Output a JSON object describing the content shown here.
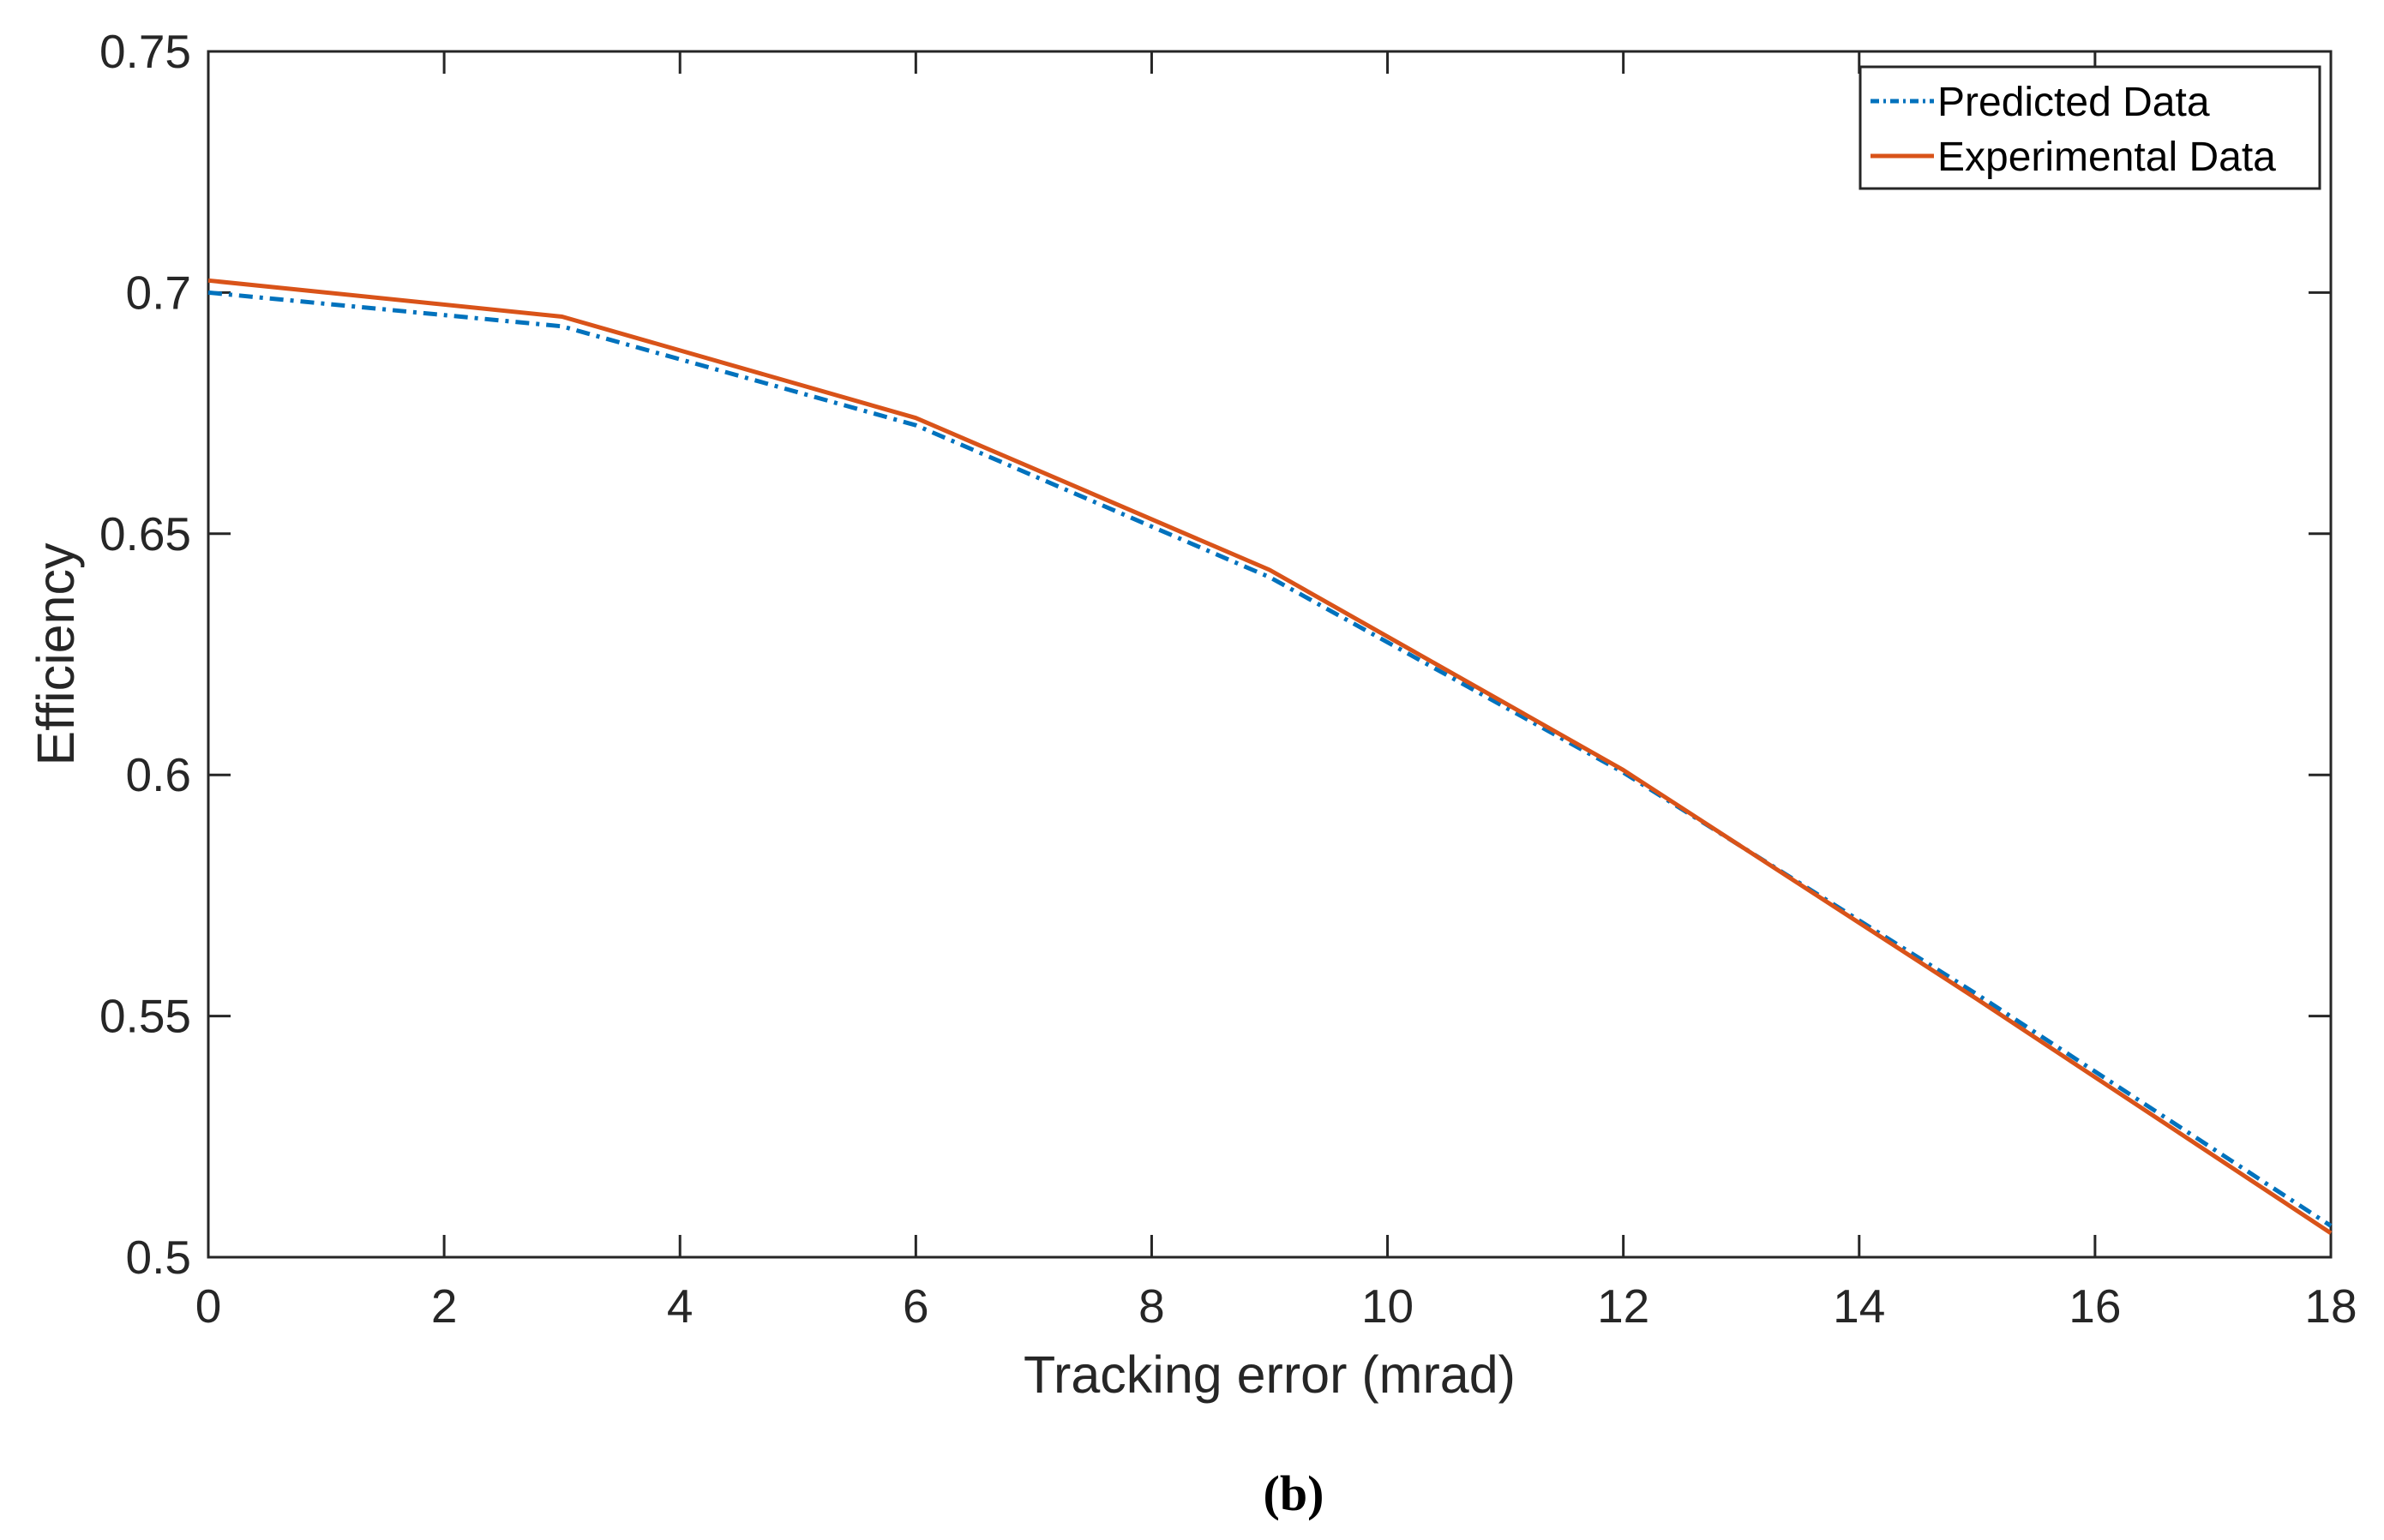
{
  "chart_data": {
    "type": "line",
    "xlabel": "Tracking error (mrad)",
    "ylabel": "Efficiency",
    "xlim": [
      0,
      18
    ],
    "ylim": [
      0.5,
      0.75
    ],
    "xticks": [
      0,
      2,
      4,
      6,
      8,
      10,
      12,
      14,
      16,
      18
    ],
    "xtick_labels": [
      "0",
      "2",
      "4",
      "6",
      "8",
      "10",
      "12",
      "14",
      "16",
      "18"
    ],
    "yticks": [
      0.5,
      0.55,
      0.6,
      0.65,
      0.7,
      0.75
    ],
    "ytick_labels": [
      "0.5",
      "0.55",
      "0.6",
      "0.65",
      "0.7",
      "0.75"
    ],
    "grid": false,
    "legend_position": "top-right",
    "series": [
      {
        "name": "Predicted Data",
        "color": "#0072BD",
        "style": "dash-dot",
        "x": [
          0,
          3,
          6,
          9,
          12,
          15,
          18
        ],
        "y": [
          0.7,
          0.693,
          0.6725,
          0.641,
          0.6005,
          0.5545,
          0.5065
        ]
      },
      {
        "name": "Experimental Data",
        "color": "#D95319",
        "style": "solid",
        "x": [
          0,
          3,
          6,
          9,
          12,
          15,
          18
        ],
        "y": [
          0.7025,
          0.695,
          0.674,
          0.6425,
          0.601,
          0.5535,
          0.505
        ]
      }
    ]
  },
  "caption": "(b)"
}
